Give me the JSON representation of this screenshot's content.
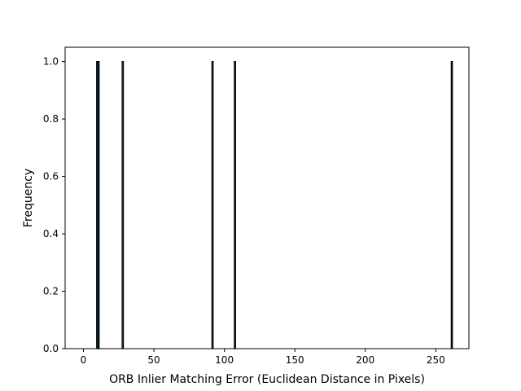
{
  "chart_data": {
    "type": "bar",
    "title": "",
    "xlabel": "ORB Inlier Matching Error (Euclidean Distance in Pixels)",
    "ylabel": "Frequency",
    "xlim": [
      -13,
      273.5
    ],
    "ylim": [
      0,
      1.05
    ],
    "xticks": [
      0,
      50,
      100,
      150,
      200,
      250
    ],
    "yticks": [
      0.0,
      0.2,
      0.4,
      0.6,
      0.8,
      1.0
    ],
    "xtick_labels": [
      "0",
      "50",
      "100",
      "150",
      "200",
      "250"
    ],
    "ytick_labels": [
      "0.0",
      "0.2",
      "0.4",
      "0.6",
      "0.8",
      "1.0"
    ],
    "grid": false,
    "bar_color": "#1f77b4",
    "edge_color": "#000000",
    "bin_width": 0.87,
    "bars": [
      {
        "x": 9.8,
        "value": 1
      },
      {
        "x": 10.7,
        "value": 1
      },
      {
        "x": 27.9,
        "value": 1
      },
      {
        "x": 91.6,
        "value": 1
      },
      {
        "x": 107.5,
        "value": 1
      },
      {
        "x": 261.4,
        "value": 1
      }
    ]
  }
}
